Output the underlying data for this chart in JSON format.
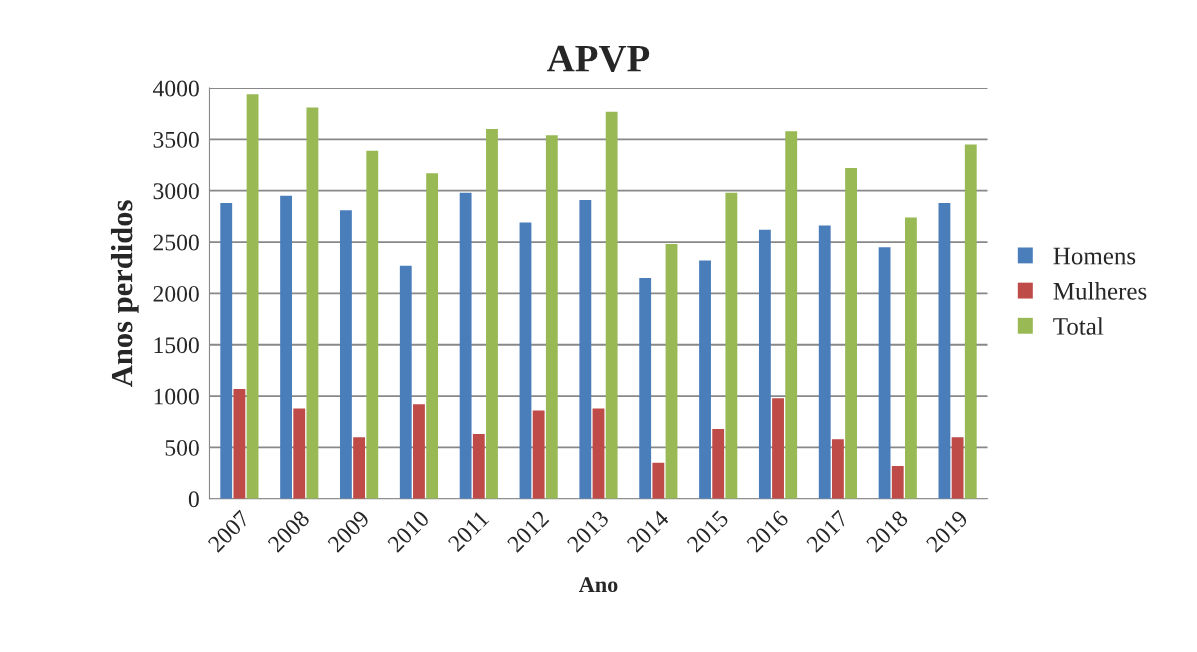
{
  "chart_data": {
    "type": "bar",
    "title": "APVP",
    "xlabel": "Ano",
    "ylabel": "Anos perdidos",
    "categories": [
      "2007",
      "2008",
      "2009",
      "2010",
      "2011",
      "2012",
      "2013",
      "2014",
      "2015",
      "2016",
      "2017",
      "2018",
      "2019"
    ],
    "series": [
      {
        "name": "Homens",
        "color": "#4a7ebb",
        "values": [
          2880,
          2950,
          2810,
          2270,
          2980,
          2690,
          2910,
          2150,
          2320,
          2620,
          2660,
          2450,
          2880
        ]
      },
      {
        "name": "Mulheres",
        "color": "#be4b48",
        "values": [
          1070,
          880,
          600,
          920,
          630,
          860,
          880,
          350,
          680,
          980,
          580,
          320,
          600
        ]
      },
      {
        "name": "Total",
        "color": "#98b954",
        "values": [
          3940,
          3810,
          3390,
          3170,
          3600,
          3540,
          3770,
          2480,
          2980,
          3580,
          3220,
          2740,
          3450
        ]
      }
    ],
    "ylim": [
      0,
      4000
    ],
    "yticks": [
      0,
      500,
      1000,
      1500,
      2000,
      2500,
      3000,
      3500,
      4000
    ],
    "grid": "y",
    "legend": "right"
  }
}
